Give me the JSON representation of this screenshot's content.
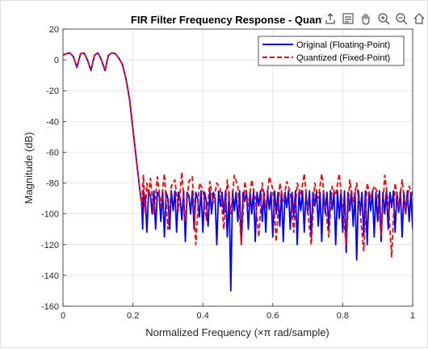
{
  "toolbar": {
    "icons": [
      "export-icon",
      "brush-icon",
      "pan-icon",
      "zoom-in-icon",
      "zoom-out-icon",
      "home-icon"
    ]
  },
  "chart_data": {
    "type": "line",
    "title": "FIR Filter Frequency Response - Quanti",
    "xlabel": "Normalized  Frequency  (×π  rad/sample)",
    "ylabel": "Magnitude (dB)",
    "xlim": [
      0,
      1
    ],
    "ylim": [
      -160,
      20
    ],
    "xticks": [
      0,
      0.2,
      0.4,
      0.6,
      0.8,
      1
    ],
    "xtick_labels": [
      "0",
      "0.2",
      "0.4",
      "0.6",
      "0.8",
      "1"
    ],
    "yticks": [
      20,
      0,
      -20,
      -40,
      -60,
      -80,
      -100,
      -120,
      -140,
      -160
    ],
    "ytick_labels": [
      "20",
      "0",
      "-20",
      "-40",
      "-60",
      "-80",
      "-100",
      "-120",
      "-140",
      "-160"
    ],
    "grid": true,
    "legend_position": "top-right",
    "series": [
      {
        "name": "Original (Floating-Point)",
        "color": "#0000ff",
        "dash": "solid",
        "x": [
          0,
          0.01,
          0.02,
          0.03,
          0.04,
          0.05,
          0.06,
          0.07,
          0.08,
          0.09,
          0.1,
          0.11,
          0.12,
          0.13,
          0.14,
          0.15,
          0.16,
          0.17,
          0.18,
          0.19,
          0.2,
          0.21,
          0.22,
          0.225,
          0.228,
          0.23,
          0.232,
          0.235,
          0.24,
          0.245,
          0.25,
          0.255,
          0.26,
          0.265,
          0.27,
          0.275,
          0.28,
          0.285,
          0.29,
          0.295,
          0.3,
          0.305,
          0.31,
          0.315,
          0.32,
          0.325,
          0.33,
          0.335,
          0.34,
          0.345,
          0.35,
          0.355,
          0.36,
          0.365,
          0.37,
          0.375,
          0.38,
          0.385,
          0.39,
          0.395,
          0.4,
          0.405,
          0.41,
          0.415,
          0.42,
          0.425,
          0.43,
          0.435,
          0.44,
          0.445,
          0.45,
          0.455,
          0.46,
          0.465,
          0.47,
          0.475,
          0.48,
          0.485,
          0.49,
          0.495,
          0.5,
          0.505,
          0.51,
          0.515,
          0.52,
          0.525,
          0.53,
          0.535,
          0.54,
          0.545,
          0.55,
          0.555,
          0.56,
          0.565,
          0.57,
          0.575,
          0.58,
          0.585,
          0.59,
          0.595,
          0.6,
          0.605,
          0.61,
          0.615,
          0.62,
          0.625,
          0.63,
          0.635,
          0.64,
          0.645,
          0.65,
          0.655,
          0.66,
          0.665,
          0.67,
          0.675,
          0.68,
          0.685,
          0.69,
          0.695,
          0.7,
          0.705,
          0.71,
          0.715,
          0.72,
          0.725,
          0.73,
          0.735,
          0.74,
          0.745,
          0.75,
          0.755,
          0.76,
          0.765,
          0.77,
          0.775,
          0.78,
          0.785,
          0.79,
          0.795,
          0.8,
          0.805,
          0.81,
          0.815,
          0.82,
          0.825,
          0.83,
          0.835,
          0.84,
          0.845,
          0.85,
          0.855,
          0.86,
          0.865,
          0.87,
          0.875,
          0.88,
          0.885,
          0.89,
          0.895,
          0.9,
          0.905,
          0.91,
          0.915,
          0.92,
          0.925,
          0.93,
          0.935,
          0.94,
          0.945,
          0.95,
          0.955,
          0.96,
          0.965,
          0.97,
          0.975,
          0.98,
          0.985,
          0.99,
          0.995,
          1
        ],
        "y": [
          3,
          4,
          4.5,
          2,
          -5,
          4,
          4.5,
          0,
          -7,
          3,
          4.5,
          0,
          -7,
          3,
          4.5,
          4,
          1,
          -3,
          -12,
          -25,
          -45,
          -65,
          -85,
          -92,
          -110,
          -85,
          -95,
          -88,
          -112,
          -85,
          -88,
          -100,
          -85,
          -110,
          -86,
          -88,
          -105,
          -85,
          -115,
          -86,
          -90,
          -110,
          -85,
          -98,
          -85,
          -112,
          -86,
          -90,
          -104,
          -85,
          -118,
          -86,
          -88,
          -100,
          -85,
          -110,
          -86,
          -90,
          -102,
          -85,
          -112,
          -86,
          -92,
          -108,
          -85,
          -100,
          -86,
          -90,
          -120,
          -85,
          -95,
          -86,
          -100,
          -85,
          -115,
          -86,
          -150,
          -85,
          -98,
          -86,
          -105,
          -85,
          -120,
          -86,
          -92,
          -85,
          -110,
          -86,
          -100,
          -85,
          -118,
          -86,
          -95,
          -85,
          -105,
          -86,
          -112,
          -85,
          -97,
          -86,
          -115,
          -85,
          -100,
          -86,
          -108,
          -85,
          -118,
          -86,
          -96,
          -85,
          -110,
          -86,
          -102,
          -85,
          -120,
          -86,
          -98,
          -85,
          -112,
          -86,
          -100,
          -85,
          -115,
          -86,
          -95,
          -85,
          -108,
          -86,
          -118,
          -85,
          -100,
          -86,
          -110,
          -85,
          -97,
          -86,
          -120,
          -85,
          -103,
          -86,
          -112,
          -85,
          -125,
          -86,
          -98,
          -85,
          -108,
          -86,
          -130,
          -85,
          -100,
          -86,
          -114,
          -85,
          -120,
          -86,
          -98,
          -85,
          -115,
          -86,
          -105,
          -85,
          -118,
          -86,
          -100,
          -85,
          -110,
          -86,
          -96,
          -85,
          -112,
          -86,
          -99,
          -85,
          -115,
          -86,
          -100,
          -85,
          -105,
          -86,
          -110
        ]
      },
      {
        "name": "Quantized (Fixed-Point)",
        "color": "#ff0000",
        "dash": "dashed",
        "x": [
          0,
          0.01,
          0.02,
          0.03,
          0.04,
          0.05,
          0.06,
          0.07,
          0.08,
          0.09,
          0.1,
          0.11,
          0.12,
          0.13,
          0.14,
          0.15,
          0.16,
          0.17,
          0.18,
          0.19,
          0.2,
          0.21,
          0.22,
          0.225,
          0.23,
          0.235,
          0.24,
          0.245,
          0.25,
          0.26,
          0.27,
          0.28,
          0.29,
          0.3,
          0.31,
          0.32,
          0.33,
          0.34,
          0.35,
          0.36,
          0.37,
          0.38,
          0.39,
          0.4,
          0.41,
          0.42,
          0.43,
          0.44,
          0.45,
          0.46,
          0.47,
          0.48,
          0.49,
          0.5,
          0.51,
          0.52,
          0.53,
          0.54,
          0.55,
          0.56,
          0.57,
          0.58,
          0.59,
          0.6,
          0.61,
          0.62,
          0.63,
          0.64,
          0.65,
          0.66,
          0.67,
          0.68,
          0.69,
          0.7,
          0.71,
          0.72,
          0.73,
          0.74,
          0.75,
          0.76,
          0.77,
          0.78,
          0.79,
          0.8,
          0.81,
          0.82,
          0.83,
          0.84,
          0.85,
          0.86,
          0.87,
          0.88,
          0.89,
          0.9,
          0.91,
          0.92,
          0.93,
          0.94,
          0.95,
          0.96,
          0.97,
          0.98,
          0.99,
          1
        ],
        "y": [
          3,
          4,
          4.5,
          2,
          -5,
          4,
          4.5,
          0,
          -7,
          3,
          4.5,
          0,
          -7,
          3,
          4.5,
          4,
          1,
          -3,
          -12,
          -25,
          -45,
          -65,
          -85,
          -95,
          -75,
          -100,
          -80,
          -88,
          -77,
          -100,
          -76,
          -95,
          -74,
          -110,
          -82,
          -78,
          -98,
          -73,
          -105,
          -79,
          -76,
          -120,
          -80,
          -84,
          -104,
          -79,
          -93,
          -80,
          -84,
          -110,
          -78,
          -100,
          -75,
          -82,
          -120,
          -79,
          -95,
          -78,
          -90,
          -115,
          -80,
          -96,
          -76,
          -84,
          -118,
          -80,
          -92,
          -79,
          -86,
          -112,
          -80,
          -88,
          -74,
          -98,
          -120,
          -80,
          -90,
          -74,
          -95,
          -115,
          -82,
          -88,
          -74,
          -96,
          -120,
          -78,
          -92,
          -80,
          -100,
          -124,
          -80,
          -90,
          -82,
          -86,
          -115,
          -75,
          -92,
          -128,
          -80,
          -95,
          -78,
          -100,
          -82,
          -88
        ]
      }
    ]
  }
}
